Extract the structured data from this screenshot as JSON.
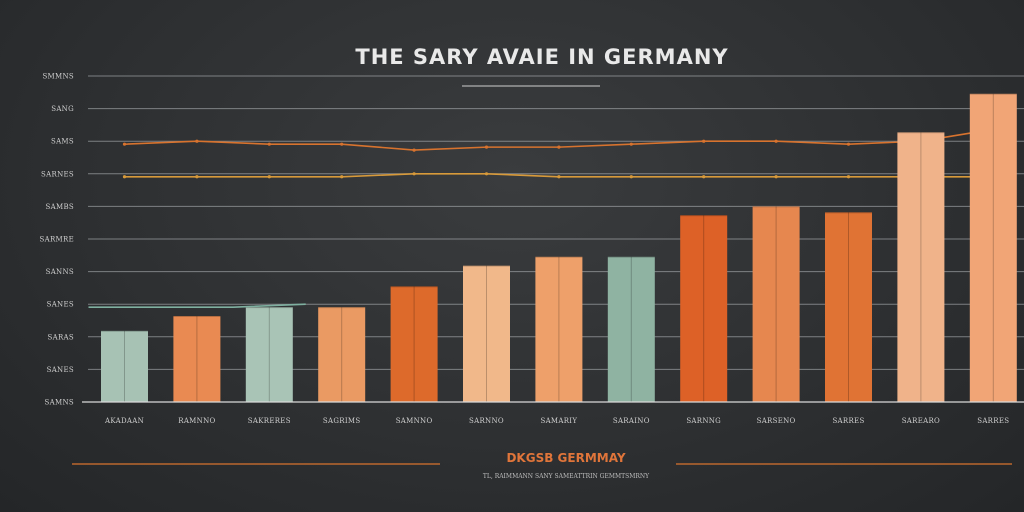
{
  "chart_data": {
    "type": "bar",
    "title": "THE SARY AVAIE IN GERMANY",
    "subtitle": "DKGSB GERMMAY",
    "caption": "TL, RAIMMANN SANY SAMEATTRIN GEMMTSMRNY",
    "y_tick_labels": [
      "SMMNS",
      "SANG",
      "SAMS",
      "SARNES",
      "SAMBS",
      "SARMRE",
      "SANNS",
      "SANES",
      "SARAS",
      "SANES",
      "SAMNS"
    ],
    "categories": [
      "AKADAAN",
      "RAMNNO",
      "SAKRERES",
      "SAGRIMS",
      "SAMNNO",
      "SARNNO",
      "SAMARIY",
      "SARAINO",
      "SARNNG",
      "SARSENO",
      "SARRES",
      "SAREARO",
      "SARRES"
    ],
    "values": [
      2.4,
      2.9,
      3.2,
      3.2,
      3.9,
      4.6,
      4.9,
      4.9,
      6.3,
      6.6,
      6.4,
      9.1,
      10.4
    ],
    "ylim": [
      0,
      11
    ],
    "bar_colors": [
      "#a7c2b4",
      "#e98a52",
      "#a9c4b6",
      "#ea9a63",
      "#dd6a2b",
      "#f1b88a",
      "#eea06a",
      "#8fb3a2",
      "#dd6127",
      "#e6874f",
      "#e07334",
      "#f0b38a",
      "#f1a576"
    ],
    "trend_lines": [
      {
        "color": "#d8732e",
        "values": [
          8.7,
          8.8,
          8.7,
          8.7,
          8.5,
          8.6,
          8.6,
          8.7,
          8.8,
          8.8,
          8.7,
          8.8,
          9.2
        ]
      },
      {
        "color": "#d89a3a",
        "values": [
          7.6,
          7.6,
          7.6,
          7.6,
          7.7,
          7.7,
          7.6,
          7.6,
          7.6,
          7.6,
          7.6,
          7.6,
          7.6
        ]
      },
      {
        "color": "#7fb0a0",
        "values": [
          3.2,
          3.2,
          3.2,
          3.3
        ]
      }
    ],
    "grid": true,
    "legend": "none"
  }
}
